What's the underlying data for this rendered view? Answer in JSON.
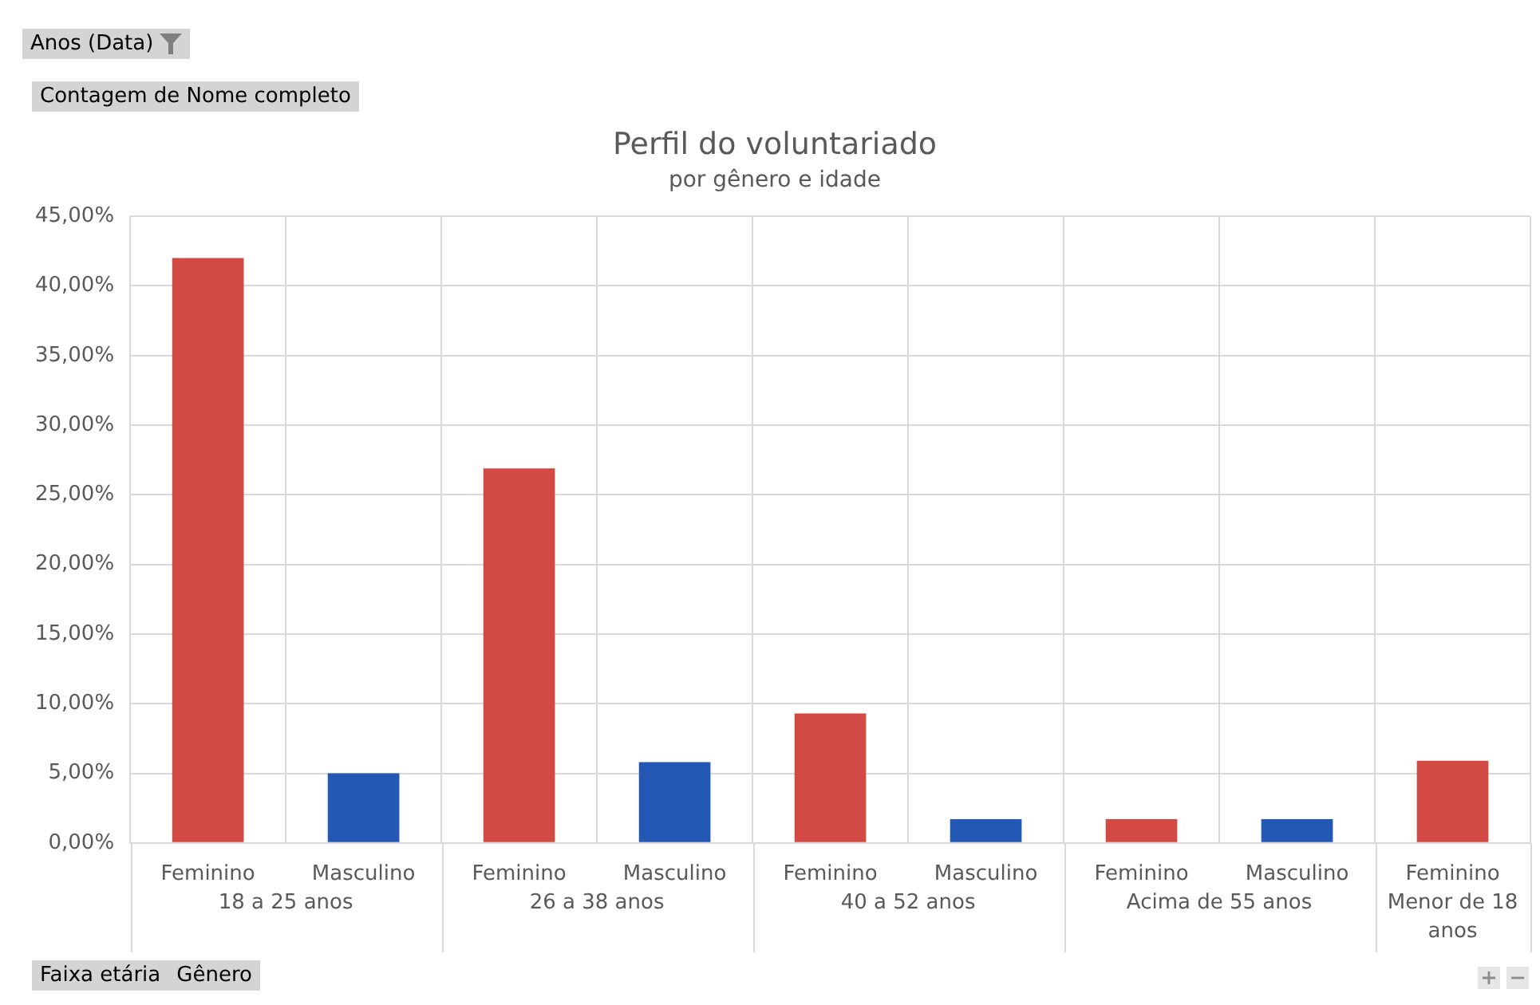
{
  "chart_data": {
    "type": "bar",
    "title": "Perfil do voluntariado",
    "subtitle": "por gênero e idade",
    "categories": [
      "Feminino",
      "Masculino",
      "Feminino",
      "Masculino",
      "Feminino",
      "Masculino",
      "Feminino",
      "Masculino",
      "Feminino"
    ],
    "values": [
      42,
      5,
      26.9,
      5.8,
      9.3,
      1.7,
      1.7,
      1.7,
      5.9
    ],
    "colors": [
      "#d24a43",
      "#2358b4",
      "#d24a43",
      "#2358b4",
      "#d24a43",
      "#2358b4",
      "#d24a43",
      "#2358b4",
      "#d24a43"
    ],
    "ylim": [
      0,
      45
    ],
    "yticks": [
      {
        "value": 0,
        "label": "0,00%"
      },
      {
        "value": 5,
        "label": "5,00%"
      },
      {
        "value": 10,
        "label": "10,00%"
      },
      {
        "value": 15,
        "label": "15,00%"
      },
      {
        "value": 20,
        "label": "20,00%"
      },
      {
        "value": 25,
        "label": "25,00%"
      },
      {
        "value": 30,
        "label": "30,00%"
      },
      {
        "value": 35,
        "label": "35,00%"
      },
      {
        "value": 40,
        "label": "40,00%"
      },
      {
        "value": 45,
        "label": "45,00%"
      }
    ],
    "grid": true,
    "annotations": [
      "18 a 25 anos",
      "26 a 38 anos",
      "40 a 52 anos",
      "Acima de 55 anos",
      "Menor de 18 anos",
      "Anos (Data)",
      "Contagem de Nome completo",
      "Faixa etária",
      "Gênero"
    ]
  }
}
